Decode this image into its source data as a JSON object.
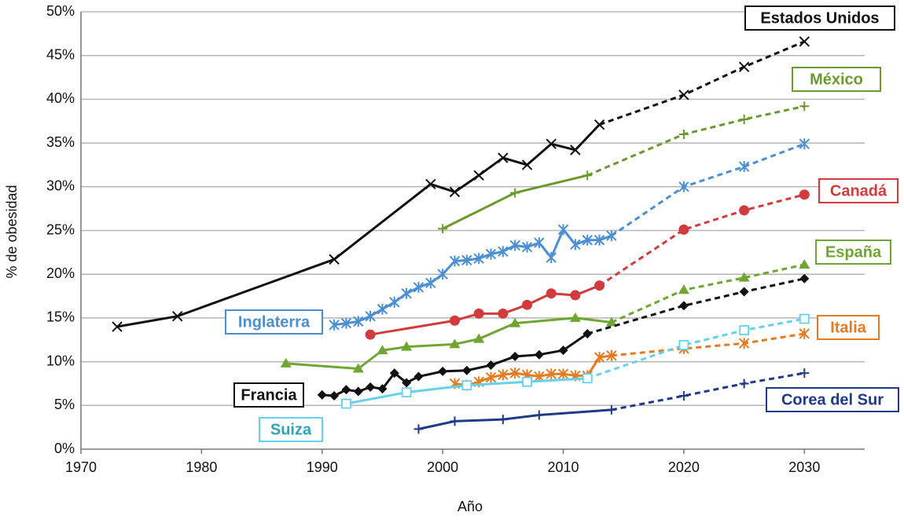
{
  "chart_data": {
    "type": "line",
    "x_label": "Año",
    "y_label": "% de obesidad",
    "xlim": [
      1970,
      2035
    ],
    "ylim": [
      0,
      50
    ],
    "xticks": [
      1970,
      1980,
      1990,
      2000,
      2010,
      2020,
      2030
    ],
    "yticks": [
      {
        "value": 0,
        "label": "0%"
      },
      {
        "value": 5,
        "label": "5%"
      },
      {
        "value": 10,
        "label": "10%"
      },
      {
        "value": 15,
        "label": "15%"
      },
      {
        "value": 20,
        "label": "20%"
      },
      {
        "value": 25,
        "label": "25%"
      },
      {
        "value": 30,
        "label": "30%"
      },
      {
        "value": 35,
        "label": "35%"
      },
      {
        "value": 40,
        "label": "40%"
      },
      {
        "value": 45,
        "label": "45%"
      },
      {
        "value": 50,
        "label": "50%"
      }
    ],
    "grid": true,
    "series": [
      {
        "name": "Estados Unidos",
        "color": "#111111",
        "marker": "x",
        "projected_from": 2013,
        "x": [
          1973,
          1978,
          1991,
          1999,
          2001,
          2003,
          2005,
          2007,
          2009,
          2011,
          2013,
          2020,
          2025,
          2030
        ],
        "values": [
          14.0,
          15.2,
          21.7,
          30.3,
          29.4,
          31.3,
          33.3,
          32.5,
          34.9,
          34.2,
          37.1,
          40.5,
          43.7,
          46.6
        ]
      },
      {
        "name": "México",
        "color": "#6b9a2c",
        "marker": "plus",
        "projected_from": 2012,
        "x": [
          2000,
          2006,
          2012,
          2020,
          2025,
          2030
        ],
        "values": [
          25.2,
          29.3,
          31.3,
          36.0,
          37.7,
          39.2
        ]
      },
      {
        "name": "Inglaterra",
        "color": "#4a8fd4",
        "marker": "asterisk",
        "projected_from": 2014,
        "x": [
          1991,
          1992,
          1993,
          1994,
          1995,
          1996,
          1997,
          1998,
          1999,
          2000,
          2001,
          2002,
          2003,
          2004,
          2005,
          2006,
          2007,
          2008,
          2009,
          2010,
          2011,
          2012,
          2013,
          2014,
          2020,
          2025,
          2030
        ],
        "values": [
          14.2,
          14.4,
          14.6,
          15.2,
          16.0,
          16.8,
          17.8,
          18.5,
          19.0,
          20.0,
          21.5,
          21.6,
          21.8,
          22.3,
          22.6,
          23.3,
          23.1,
          23.6,
          21.9,
          25.1,
          23.4,
          23.9,
          23.9,
          24.4,
          30.0,
          32.3,
          34.9
        ]
      },
      {
        "name": "Canadá",
        "color": "#d23b3b",
        "marker": "circle",
        "projected_from": 2013,
        "x": [
          1994,
          2001,
          2003,
          2005,
          2007,
          2009,
          2011,
          2013,
          2020,
          2025,
          2030
        ],
        "values": [
          13.1,
          14.7,
          15.5,
          15.5,
          16.5,
          17.8,
          17.6,
          18.7,
          25.1,
          27.3,
          29.1
        ]
      },
      {
        "name": "España",
        "color": "#6fa632",
        "marker": "triangle",
        "projected_from": 2014,
        "x": [
          1987,
          1993,
          1995,
          1997,
          2001,
          2003,
          2006,
          2011,
          2014,
          2020,
          2025,
          2030
        ],
        "values": [
          9.8,
          9.2,
          11.3,
          11.7,
          12.0,
          12.6,
          14.4,
          15.0,
          14.5,
          18.2,
          19.6,
          21.1
        ]
      },
      {
        "name": "Francia",
        "color": "#111111",
        "marker": "diamond",
        "projected_from": 2012,
        "x": [
          1990,
          1991,
          1992,
          1993,
          1994,
          1995,
          1996,
          1997,
          1998,
          2000,
          2002,
          2004,
          2006,
          2008,
          2010,
          2012,
          2020,
          2025,
          2030
        ],
        "values": [
          6.2,
          6.1,
          6.8,
          6.6,
          7.1,
          6.9,
          8.7,
          7.6,
          8.3,
          8.9,
          9.0,
          9.6,
          10.6,
          10.8,
          11.3,
          13.2,
          16.4,
          18.0,
          19.5
        ]
      },
      {
        "name": "Italia",
        "color": "#e57a1e",
        "marker": "asterisk",
        "projected_from": 2014,
        "x": [
          2001,
          2002,
          2003,
          2004,
          2005,
          2006,
          2007,
          2008,
          2009,
          2010,
          2011,
          2012,
          2013,
          2014,
          2020,
          2025,
          2030
        ],
        "values": [
          7.5,
          7.3,
          7.7,
          8.2,
          8.5,
          8.7,
          8.5,
          8.3,
          8.6,
          8.6,
          8.4,
          8.4,
          10.5,
          10.7,
          11.5,
          12.1,
          13.2
        ]
      },
      {
        "name": "Suiza",
        "color": "#62d2f0",
        "label_color": "#2ea3b8",
        "marker": "square",
        "projected_from": 2012,
        "x": [
          1992,
          1997,
          2002,
          2007,
          2012,
          2020,
          2025,
          2030
        ],
        "values": [
          5.2,
          6.5,
          7.3,
          7.7,
          8.1,
          11.9,
          13.6,
          14.9
        ]
      },
      {
        "name": "Corea del Sur",
        "color": "#1f3a8a",
        "marker": "plus",
        "projected_from": 2014,
        "x": [
          1998,
          2001,
          2005,
          2008,
          2014,
          2020,
          2025,
          2030
        ],
        "values": [
          2.3,
          3.2,
          3.4,
          3.9,
          4.5,
          6.1,
          7.5,
          8.7
        ]
      }
    ]
  }
}
